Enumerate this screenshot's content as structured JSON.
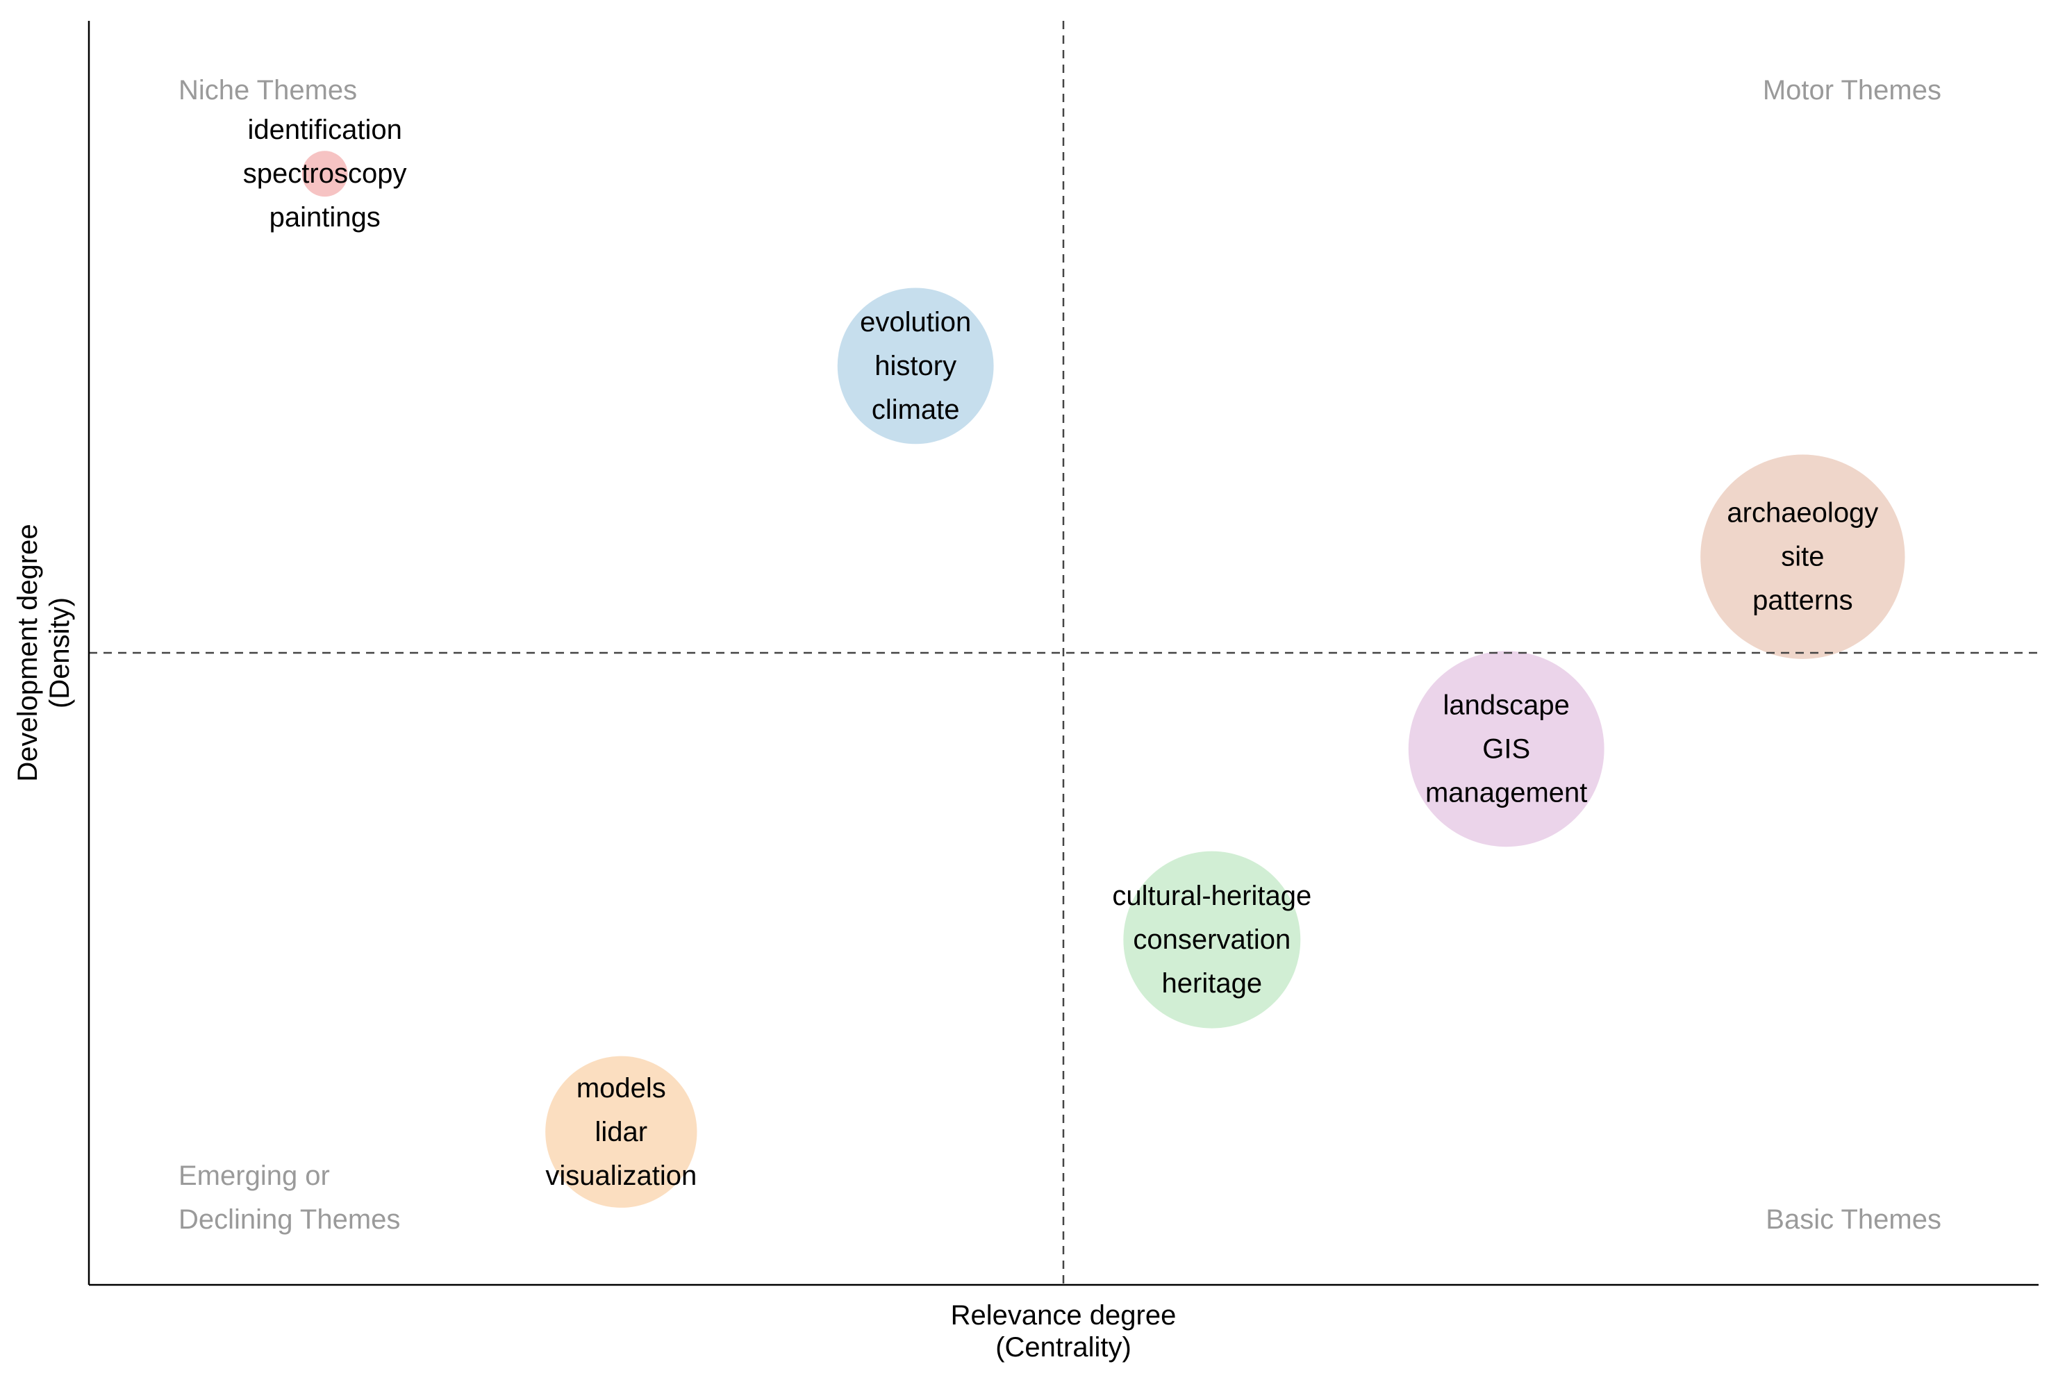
{
  "chart_data": {
    "type": "scatter",
    "title": "",
    "xlabel": "Relevance degree",
    "xlabel_sub": "(Centrality)",
    "ylabel": "Development degree",
    "ylabel_sub": "(Density)",
    "xlim": [
      0,
      1
    ],
    "ylim": [
      0,
      1
    ],
    "reference_x": 0.5,
    "reference_y": 0.5,
    "quadrants": {
      "top_left": [
        "Niche Themes"
      ],
      "top_right": [
        "Motor Themes"
      ],
      "bottom_left": [
        "Emerging or",
        "Declining Themes"
      ],
      "bottom_right": [
        "Basic Themes"
      ]
    },
    "clusters": [
      {
        "name": "niche-cluster",
        "x": 0.121,
        "y": 0.879,
        "size": 3,
        "color": "#f4b8b8",
        "labels": [
          "identification",
          "spectroscopy",
          "paintings"
        ]
      },
      {
        "name": "evolution-cluster",
        "x": 0.424,
        "y": 0.727,
        "size": 35,
        "color": "#bcd8ea",
        "labels": [
          "evolution",
          "history",
          "climate"
        ]
      },
      {
        "name": "archaeology-cluster",
        "x": 0.879,
        "y": 0.576,
        "size": 60,
        "color": "#eccfc1",
        "labels": [
          "archaeology",
          "site",
          "patterns"
        ]
      },
      {
        "name": "landscape-cluster",
        "x": 0.727,
        "y": 0.424,
        "size": 55,
        "color": "#e8cde6",
        "labels": [
          "landscape",
          "GIS",
          "management"
        ]
      },
      {
        "name": "cultural-heritage-cluster",
        "x": 0.576,
        "y": 0.273,
        "size": 45,
        "color": "#c9ebcc",
        "labels": [
          "cultural-heritage",
          "conservation",
          "heritage"
        ]
      },
      {
        "name": "lidar-cluster",
        "x": 0.273,
        "y": 0.121,
        "size": 33,
        "color": "#fad8b5",
        "labels": [
          "models",
          "lidar",
          "visualization"
        ]
      }
    ]
  }
}
